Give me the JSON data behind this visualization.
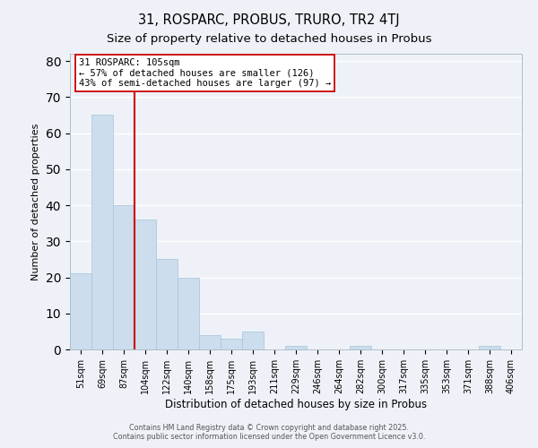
{
  "title": "31, ROSPARC, PROBUS, TRURO, TR2 4TJ",
  "subtitle": "Size of property relative to detached houses in Probus",
  "bar_labels": [
    "51sqm",
    "69sqm",
    "87sqm",
    "104sqm",
    "122sqm",
    "140sqm",
    "158sqm",
    "175sqm",
    "193sqm",
    "211sqm",
    "229sqm",
    "246sqm",
    "264sqm",
    "282sqm",
    "300sqm",
    "317sqm",
    "335sqm",
    "353sqm",
    "371sqm",
    "388sqm",
    "406sqm"
  ],
  "bar_values": [
    21,
    65,
    40,
    36,
    25,
    20,
    4,
    3,
    5,
    0,
    1,
    0,
    0,
    1,
    0,
    0,
    0,
    0,
    0,
    1,
    0
  ],
  "bar_color": "#ccdded",
  "bar_edge_color": "#aec8dc",
  "vline_color": "#cc0000",
  "annotation_title": "31 ROSPARC: 105sqm",
  "annotation_line1": "← 57% of detached houses are smaller (126)",
  "annotation_line2": "43% of semi-detached houses are larger (97) →",
  "annotation_box_color": "#ffffff",
  "annotation_box_edge": "#cc0000",
  "xlabel": "Distribution of detached houses by size in Probus",
  "ylabel": "Number of detached properties",
  "ylim": [
    0,
    82
  ],
  "yticks": [
    0,
    10,
    20,
    30,
    40,
    50,
    60,
    70,
    80
  ],
  "footer1": "Contains HM Land Registry data © Crown copyright and database right 2025.",
  "footer2": "Contains public sector information licensed under the Open Government Licence v3.0.",
  "bg_color": "#eef2f8",
  "grid_color": "#ffffff",
  "title_fontsize": 10.5,
  "subtitle_fontsize": 9.5,
  "vline_bar_index": 3
}
